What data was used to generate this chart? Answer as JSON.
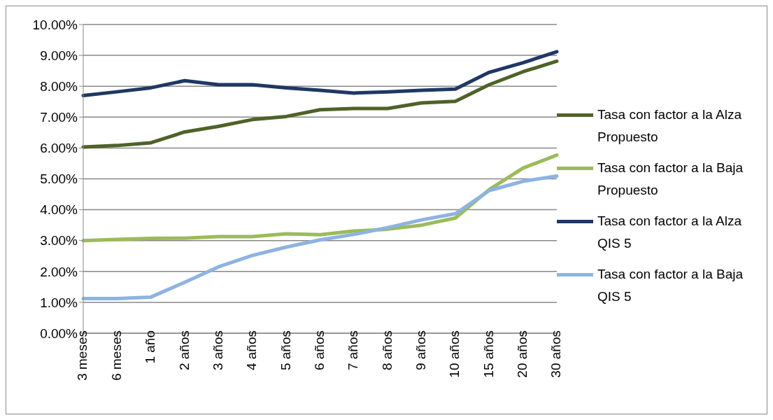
{
  "chart_data": {
    "type": "line",
    "categories": [
      "3 meses",
      "6 meses",
      "1 año",
      "2 años",
      "3 años",
      "4 años",
      "5 años",
      "6 años",
      "7 años",
      "8 años",
      "9 años",
      "10 años",
      "15 años",
      "20 años",
      "30 años"
    ],
    "series": [
      {
        "name": "Tasa con factor a la Alza Propuesto",
        "color": "#4f6228",
        "values": [
          6.03,
          6.08,
          6.17,
          6.52,
          6.7,
          6.92,
          7.02,
          7.24,
          7.28,
          7.28,
          7.46,
          7.51,
          8.05,
          8.47,
          8.81
        ]
      },
      {
        "name": "Tasa con factor a la Baja Propuesto",
        "color": "#9bbb59",
        "values": [
          3.0,
          3.04,
          3.07,
          3.08,
          3.13,
          3.13,
          3.22,
          3.19,
          3.31,
          3.37,
          3.5,
          3.73,
          4.65,
          5.35,
          5.77
        ]
      },
      {
        "name": "Tasa con factor a la Alza QIS 5",
        "color": "#1f3864",
        "values": [
          7.7,
          7.82,
          7.95,
          8.18,
          8.05,
          8.05,
          7.95,
          7.87,
          7.78,
          7.82,
          7.87,
          7.91,
          8.45,
          8.76,
          9.12
        ]
      },
      {
        "name": "Tasa con factor a la Baja QIS 5",
        "color": "#8db3e2",
        "values": [
          1.12,
          1.12,
          1.17,
          1.65,
          2.15,
          2.52,
          2.79,
          3.02,
          3.2,
          3.42,
          3.67,
          3.87,
          4.62,
          4.92,
          5.09
        ]
      }
    ],
    "ylim": [
      0,
      10
    ],
    "yticks": [
      {
        "value": 0,
        "label": "0.00%"
      },
      {
        "value": 1,
        "label": "1.00%"
      },
      {
        "value": 2,
        "label": "2.00%"
      },
      {
        "value": 3,
        "label": "3.00%"
      },
      {
        "value": 4,
        "label": "4.00%"
      },
      {
        "value": 5,
        "label": "5.00%"
      },
      {
        "value": 6,
        "label": "6.00%"
      },
      {
        "value": 7,
        "label": "7.00%"
      },
      {
        "value": 8,
        "label": "8.00%"
      },
      {
        "value": 9,
        "label": "9.00%"
      },
      {
        "value": 10,
        "label": "10.00%"
      }
    ],
    "grid": "y",
    "legend": "right",
    "marker": "none",
    "line_style": "solid"
  }
}
